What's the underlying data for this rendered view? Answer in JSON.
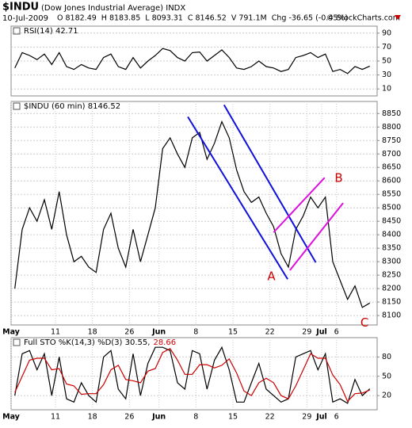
{
  "header": {
    "symbol": "$INDU",
    "name": "(Dow Jones Industrial Average) INDX",
    "date": "10-Jul-2009",
    "fields": [
      "O 8182.49",
      "H 8183.85",
      "L 8093.31",
      "C 8146.52",
      "V 791.1M",
      "Chg -36.65 (-0.45%)"
    ],
    "credit": "© StockCharts.com"
  },
  "chart_data": [
    {
      "type": "line",
      "label": "RSI(14) 42.71",
      "xlim": [
        0,
        49.5
      ],
      "ylim": [
        0,
        100
      ],
      "yticks": [
        90,
        70,
        50,
        30,
        10
      ],
      "grid": true,
      "x": [
        0.5,
        1.5,
        2.5,
        3.5,
        4.5,
        5.5,
        6.5,
        7.5,
        8.5,
        9.5,
        10.5,
        11.5,
        12.5,
        13.5,
        14.5,
        15.5,
        16.5,
        17.5,
        18.5,
        19.5,
        20.5,
        21.5,
        22.5,
        23.5,
        24.5,
        25.5,
        26.5,
        27.5,
        28.5,
        29.5,
        30.5,
        31.5,
        32.5,
        33.5,
        34.5,
        35.5,
        36.5,
        37.5,
        38.5,
        39.5,
        40.5,
        41.5,
        42.5,
        43.5,
        44.5,
        45.5,
        46.5,
        47.5,
        48.5
      ],
      "series": [
        {
          "name": "RSI(14)",
          "color": "#000000",
          "values": [
            40,
            62,
            58,
            52,
            60,
            45,
            62,
            42,
            38,
            45,
            40,
            38,
            55,
            60,
            42,
            38,
            55,
            40,
            50,
            58,
            68,
            65,
            55,
            50,
            62,
            63,
            50,
            58,
            66,
            55,
            40,
            38,
            42,
            50,
            42,
            40,
            35,
            38,
            55,
            58,
            62,
            55,
            60,
            35,
            38,
            32,
            42,
            38,
            42.71
          ]
        }
      ]
    },
    {
      "type": "line",
      "label": "$INDU (60 min) 8146.52",
      "xlim": [
        0,
        49.5
      ],
      "ylim": [
        8065,
        8895
      ],
      "grid": true,
      "yticks": [
        8100,
        8150,
        8200,
        8250,
        8300,
        8350,
        8400,
        8450,
        8500,
        8550,
        8600,
        8650,
        8700,
        8750,
        8800,
        8850
      ],
      "xticks": [
        {
          "value": 0,
          "label": "May"
        },
        {
          "value": 6,
          "label": "11"
        },
        {
          "value": 11,
          "label": "18"
        },
        {
          "value": 16,
          "label": "26"
        },
        {
          "value": 20,
          "label": "Jun"
        },
        {
          "value": 25,
          "label": "8"
        },
        {
          "value": 30,
          "label": "15"
        },
        {
          "value": 35,
          "label": "22"
        },
        {
          "value": 40,
          "label": "29"
        },
        {
          "value": 42,
          "label": "Jul"
        },
        {
          "value": 44,
          "label": "6"
        }
      ],
      "x": [
        0.5,
        1.5,
        2.5,
        3.5,
        4.5,
        5.5,
        6.5,
        7.5,
        8.5,
        9.5,
        10.5,
        11.5,
        12.5,
        13.5,
        14.5,
        15.5,
        16.5,
        17.5,
        18.5,
        19.5,
        20.5,
        21.5,
        22.5,
        23.5,
        24.5,
        25.5,
        26.5,
        27.5,
        28.5,
        29.5,
        30.5,
        31.5,
        32.5,
        33.5,
        34.5,
        35.5,
        36.5,
        37.5,
        38.5,
        39.5,
        40.5,
        41.5,
        42.5,
        43.5,
        44.5,
        45.5,
        46.5,
        47.5,
        48.5
      ],
      "series": [
        {
          "name": "$INDU",
          "color": "#000000",
          "values": [
            8200,
            8420,
            8500,
            8450,
            8530,
            8420,
            8560,
            8400,
            8300,
            8320,
            8280,
            8260,
            8420,
            8480,
            8350,
            8280,
            8420,
            8300,
            8400,
            8500,
            8720,
            8760,
            8700,
            8650,
            8760,
            8780,
            8680,
            8740,
            8820,
            8760,
            8640,
            8560,
            8520,
            8540,
            8480,
            8430,
            8330,
            8280,
            8420,
            8470,
            8540,
            8500,
            8540,
            8300,
            8230,
            8160,
            8210,
            8130,
            8146.52
          ]
        }
      ],
      "trendlines": [
        {
          "color": "#1010dd",
          "x": [
            23.9,
            37.4
          ],
          "y": [
            8838,
            8235
          ]
        },
        {
          "color": "#1010dd",
          "x": [
            28.8,
            41.2
          ],
          "y": [
            8882,
            8297
          ]
        },
        {
          "color": "#dd10dd",
          "x": [
            35.5,
            42.4
          ],
          "y": [
            8409,
            8612
          ]
        },
        {
          "color": "#dd10dd",
          "x": [
            37.7,
            44.9
          ],
          "y": [
            8268,
            8518
          ]
        }
      ],
      "annotations": [
        {
          "text": "A",
          "x": 35.2,
          "y": 8244
        },
        {
          "text": "B",
          "x": 44.3,
          "y": 8609
        },
        {
          "text": "C",
          "x": 47.8,
          "y": 8072
        }
      ]
    },
    {
      "type": "line",
      "label": "Full STO %K(14,3) %D(3) 30.55,",
      "label_extra": "28.66",
      "xlim": [
        0,
        49.5
      ],
      "ylim": [
        -2,
        110
      ],
      "yticks": [
        80,
        50,
        20
      ],
      "grid": true,
      "xticks": [
        {
          "value": 0,
          "label": "May"
        },
        {
          "value": 6,
          "label": "11"
        },
        {
          "value": 11,
          "label": "18"
        },
        {
          "value": 16,
          "label": "26"
        },
        {
          "value": 20,
          "label": "Jun"
        },
        {
          "value": 25,
          "label": "8"
        },
        {
          "value": 30,
          "label": "15"
        },
        {
          "value": 35,
          "label": "22"
        },
        {
          "value": 40,
          "label": "29"
        },
        {
          "value": 42,
          "label": "Jul"
        },
        {
          "value": 44,
          "label": "6"
        }
      ],
      "x": [
        0.5,
        1.5,
        2.5,
        3.5,
        4.5,
        5.5,
        6.5,
        7.5,
        8.5,
        9.5,
        10.5,
        11.5,
        12.5,
        13.5,
        14.5,
        15.5,
        16.5,
        17.5,
        18.5,
        19.5,
        20.5,
        21.5,
        22.5,
        23.5,
        24.5,
        25.5,
        26.5,
        27.5,
        28.5,
        29.5,
        30.5,
        31.5,
        32.5,
        33.5,
        34.5,
        35.5,
        36.5,
        37.5,
        38.5,
        39.5,
        40.5,
        41.5,
        42.5,
        43.5,
        44.5,
        45.5,
        46.5,
        47.5,
        48.5
      ],
      "series": [
        {
          "name": "%K(14,3)",
          "color": "#000000",
          "values": [
            20,
            85,
            90,
            60,
            85,
            20,
            80,
            15,
            10,
            40,
            20,
            10,
            80,
            90,
            30,
            15,
            85,
            20,
            70,
            95,
            95,
            90,
            40,
            30,
            90,
            85,
            30,
            75,
            95,
            60,
            10,
            10,
            40,
            70,
            30,
            20,
            10,
            15,
            80,
            85,
            90,
            60,
            85,
            10,
            15,
            8,
            45,
            20,
            30.55
          ]
        },
        {
          "name": "%D(3)",
          "color": "#cc0000",
          "values": [
            25,
            50,
            75,
            78,
            78,
            60,
            62,
            38,
            35,
            22,
            23,
            23,
            37,
            60,
            67,
            45,
            43,
            40,
            58,
            62,
            87,
            93,
            75,
            53,
            53,
            68,
            68,
            63,
            67,
            77,
            55,
            27,
            20,
            40,
            47,
            40,
            20,
            15,
            35,
            60,
            85,
            78,
            78,
            52,
            37,
            11,
            23,
            24,
            28.66
          ]
        }
      ]
    }
  ]
}
